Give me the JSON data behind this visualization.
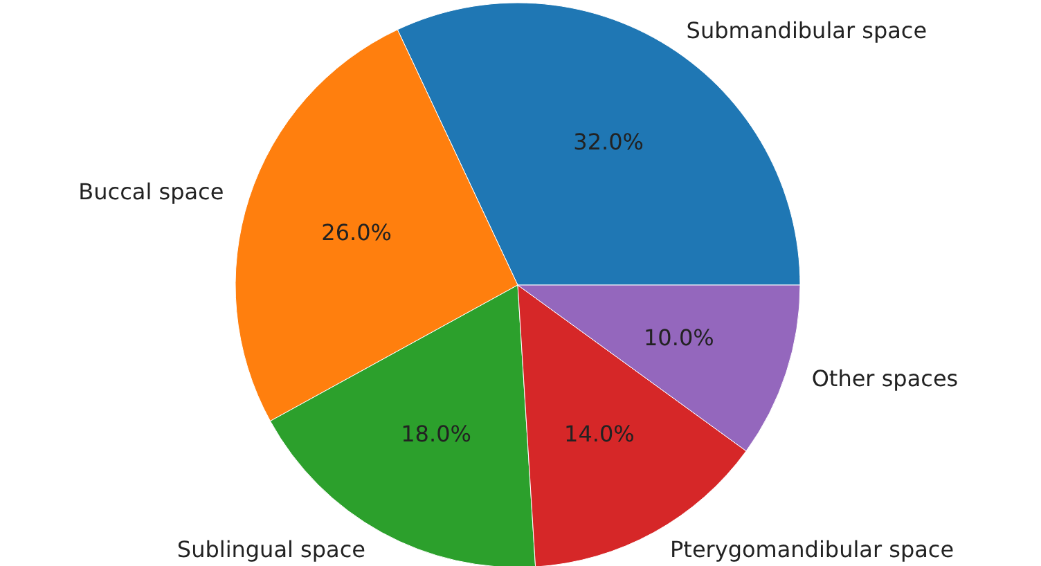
{
  "chart_data": {
    "type": "pie",
    "categories": [
      "Submandibular space",
      "Buccal space",
      "Sublingual space",
      "Pterygomandibular space",
      "Other spaces"
    ],
    "values": [
      32,
      26,
      18,
      14,
      10
    ],
    "colors": [
      "#1f77b4",
      "#ff7f0e",
      "#2ca02c",
      "#d62728",
      "#9467bd"
    ],
    "value_labels": [
      "32.0%",
      "26.0%",
      "18.0%",
      "14.0%",
      "10.0%"
    ]
  }
}
